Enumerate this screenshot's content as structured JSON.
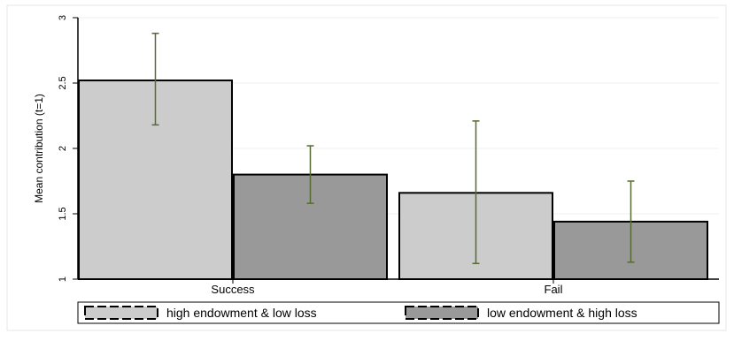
{
  "chart_data": {
    "type": "bar",
    "categories": [
      "Success",
      "Fail"
    ],
    "series": [
      {
        "name": "high endowment & low loss",
        "values": [
          2.52,
          1.66
        ],
        "ci_low": [
          2.18,
          1.12
        ],
        "ci_high": [
          2.88,
          2.21
        ],
        "color": "#cccccc"
      },
      {
        "name": "low endowment & high loss",
        "values": [
          1.8,
          1.44
        ],
        "ci_low": [
          1.58,
          1.13
        ],
        "ci_high": [
          2.02,
          1.75
        ],
        "color": "#999999"
      }
    ],
    "ylabel": "Mean contribution (t=1)",
    "xlabel": "",
    "title": "",
    "ylim": [
      1,
      3
    ],
    "yticks": [
      "1",
      "1.5",
      "2",
      "2.5",
      "3"
    ],
    "error_bars": true,
    "grid": true,
    "legend_position": "bottom",
    "colors": {
      "error_bar": "#556b2f",
      "grid": "#eef2f2",
      "bar_edge": "#000000",
      "axis": "#000000"
    }
  }
}
